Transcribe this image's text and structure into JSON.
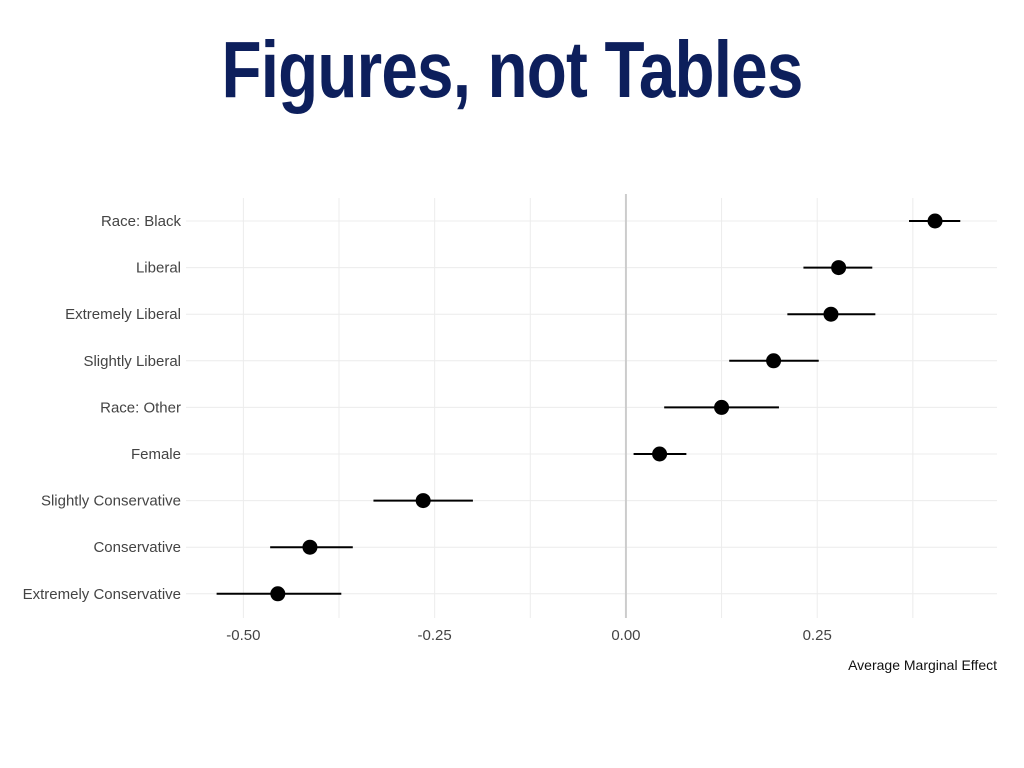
{
  "slide": {
    "title": "Figures, not Tables"
  },
  "chart_data": {
    "type": "scatter",
    "subtype": "dot-and-whisker",
    "xlabel": "Average Marginal Effect",
    "ylabel": "",
    "xlim": [
      -0.575,
      0.485
    ],
    "xticks": [
      -0.5,
      -0.25,
      0,
      0.25
    ],
    "xtick_labels": [
      "-0.50",
      "-0.25",
      "0.00",
      "0.25"
    ],
    "reference_line": 0,
    "grid": true,
    "legend": "none",
    "colors": {
      "point": "#000000",
      "grid": "#ececec",
      "reference_line": "#cccccc",
      "title": "#0d1f5c"
    },
    "categories": [
      "Race: Black",
      "Liberal",
      "Extremely Liberal",
      "Slightly Liberal",
      "Race: Other",
      "Female",
      "Slightly Conservative",
      "Conservative",
      "Extremely Conservative"
    ],
    "estimates": [
      0.404,
      0.278,
      0.268,
      0.193,
      0.125,
      0.044,
      -0.265,
      -0.413,
      -0.455
    ],
    "ci_lower": [
      0.37,
      0.232,
      0.211,
      0.135,
      0.05,
      0.01,
      -0.33,
      -0.465,
      -0.535
    ],
    "ci_upper": [
      0.437,
      0.322,
      0.326,
      0.252,
      0.2,
      0.079,
      -0.2,
      -0.357,
      -0.372
    ]
  }
}
